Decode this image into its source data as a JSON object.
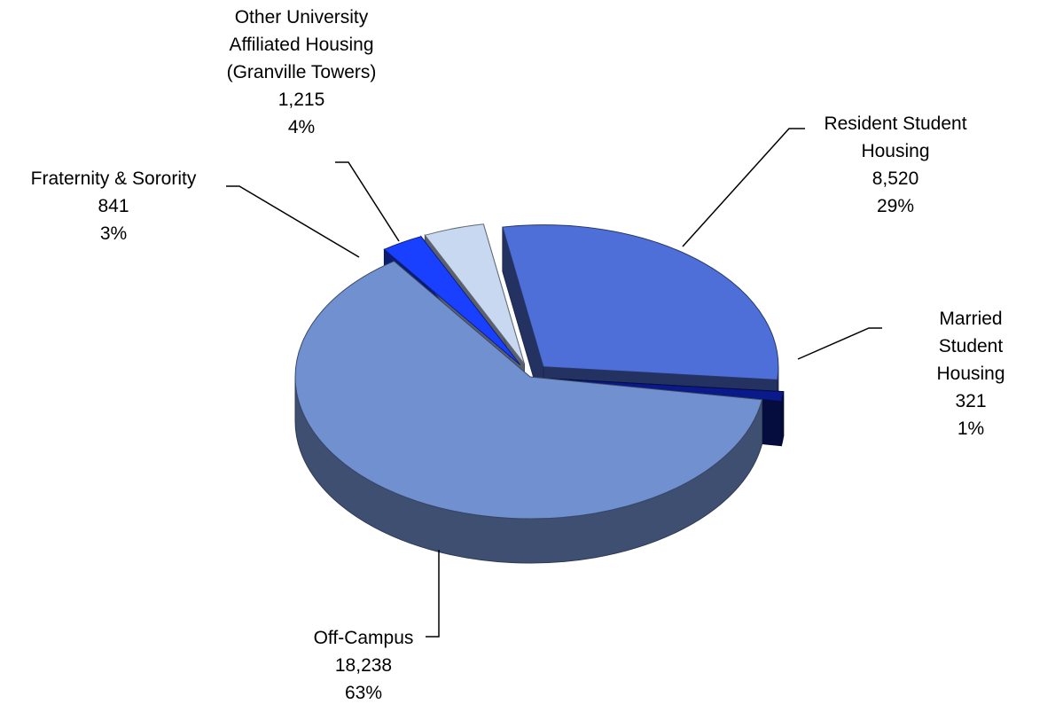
{
  "chart_data": {
    "type": "pie3d",
    "categories": [
      "Resident Student\nHousing",
      "Married Student\nHousing",
      "Off-Campus",
      "Fraternity & Sorority",
      "Other University\nAffiliated Housing\n(Granville Towers)"
    ],
    "values": [
      8520,
      321,
      18238,
      841,
      1215
    ],
    "value_labels": [
      "8,520",
      "321",
      "18,238",
      "841",
      "1,215"
    ],
    "percent_labels": [
      "29%",
      "1%",
      "63%",
      "3%",
      "4%"
    ],
    "colors": [
      "#4f6fd8",
      "#0a1a8a",
      "#7090d0",
      "#1a40ff",
      "#c8d8f0"
    ],
    "exploded": [
      true,
      true,
      false,
      true,
      true
    ]
  }
}
